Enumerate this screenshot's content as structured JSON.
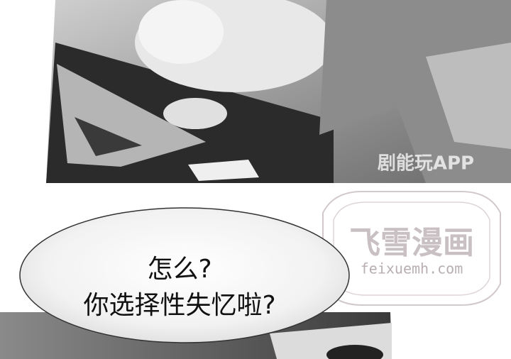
{
  "speech_bubble": {
    "lines": [
      "怎么?",
      "你选择性失忆啦?"
    ]
  },
  "watermarks": {
    "app": "剧能玩APP",
    "logo_title": "飞雪漫画",
    "logo_url": "feixuemh.com"
  }
}
